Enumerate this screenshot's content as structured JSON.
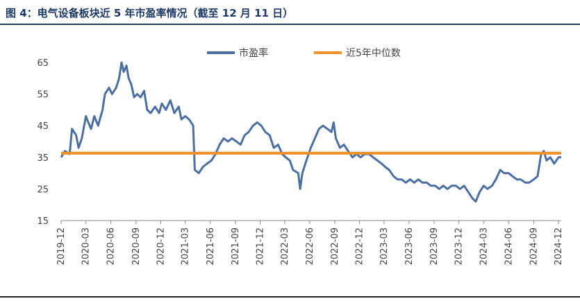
{
  "title": "图 4：电气设备板块近 5 年市盈率情况（截至 12 月 11 日）",
  "chart_data": {
    "type": "line",
    "title": "",
    "xlabel": "",
    "ylabel": "",
    "ylim": [
      15,
      65
    ],
    "yticks": [
      15,
      25,
      35,
      45,
      55,
      65
    ],
    "xticks": [
      "2019-12",
      "2020-03",
      "2020-06",
      "2020-09",
      "2020-12",
      "2021-03",
      "2021-06",
      "2021-09",
      "2021-12",
      "2022-03",
      "2022-06",
      "2022-09",
      "2022-12",
      "2023-03",
      "2023-06",
      "2023-09",
      "2023-12",
      "2024-03",
      "2024-06",
      "2024-09",
      "2024-12"
    ],
    "legend_position": "top-center",
    "series": [
      {
        "name": "市盈率",
        "color": "#4a6fa0",
        "points": [
          [
            "2019-12-01",
            35
          ],
          [
            "2019-12-15",
            37
          ],
          [
            "2020-01-01",
            36
          ],
          [
            "2020-01-10",
            44
          ],
          [
            "2020-01-25",
            42
          ],
          [
            "2020-02-03",
            38
          ],
          [
            "2020-02-15",
            41
          ],
          [
            "2020-03-01",
            48
          ],
          [
            "2020-03-10",
            46
          ],
          [
            "2020-03-20",
            44
          ],
          [
            "2020-04-01",
            48
          ],
          [
            "2020-04-15",
            45
          ],
          [
            "2020-05-01",
            50
          ],
          [
            "2020-05-10",
            55
          ],
          [
            "2020-05-25",
            57
          ],
          [
            "2020-06-05",
            55
          ],
          [
            "2020-06-20",
            57
          ],
          [
            "2020-07-01",
            60
          ],
          [
            "2020-07-10",
            65
          ],
          [
            "2020-07-18",
            62
          ],
          [
            "2020-07-28",
            64
          ],
          [
            "2020-08-05",
            60
          ],
          [
            "2020-08-15",
            58
          ],
          [
            "2020-08-25",
            54
          ],
          [
            "2020-09-05",
            55
          ],
          [
            "2020-09-18",
            54
          ],
          [
            "2020-10-01",
            56
          ],
          [
            "2020-10-12",
            50
          ],
          [
            "2020-10-25",
            49
          ],
          [
            "2020-11-10",
            51
          ],
          [
            "2020-11-25",
            49
          ],
          [
            "2020-12-05",
            52
          ],
          [
            "2020-12-20",
            50
          ],
          [
            "2021-01-05",
            53
          ],
          [
            "2021-01-20",
            49
          ],
          [
            "2021-02-05",
            51
          ],
          [
            "2021-02-15",
            47
          ],
          [
            "2021-03-01",
            48
          ],
          [
            "2021-03-15",
            47
          ],
          [
            "2021-03-30",
            45
          ],
          [
            "2021-04-05",
            31
          ],
          [
            "2021-04-20",
            30
          ],
          [
            "2021-05-05",
            32
          ],
          [
            "2021-05-20",
            33
          ],
          [
            "2021-06-05",
            34
          ],
          [
            "2021-06-20",
            36
          ],
          [
            "2021-07-05",
            39
          ],
          [
            "2021-07-20",
            41
          ],
          [
            "2021-08-05",
            40
          ],
          [
            "2021-08-20",
            41
          ],
          [
            "2021-09-05",
            40
          ],
          [
            "2021-09-20",
            39
          ],
          [
            "2021-10-05",
            42
          ],
          [
            "2021-10-20",
            43
          ],
          [
            "2021-11-05",
            45
          ],
          [
            "2021-11-20",
            46
          ],
          [
            "2021-12-05",
            45
          ],
          [
            "2021-12-20",
            43
          ],
          [
            "2022-01-05",
            42
          ],
          [
            "2022-01-20",
            38
          ],
          [
            "2022-02-05",
            39
          ],
          [
            "2022-02-20",
            36
          ],
          [
            "2022-03-05",
            35
          ],
          [
            "2022-03-20",
            34
          ],
          [
            "2022-04-01",
            31
          ],
          [
            "2022-04-20",
            30
          ],
          [
            "2022-04-27",
            25
          ],
          [
            "2022-05-05",
            30
          ],
          [
            "2022-05-20",
            34
          ],
          [
            "2022-06-05",
            38
          ],
          [
            "2022-06-20",
            41
          ],
          [
            "2022-07-05",
            44
          ],
          [
            "2022-07-20",
            45
          ],
          [
            "2022-08-05",
            44
          ],
          [
            "2022-08-20",
            43
          ],
          [
            "2022-08-28",
            46
          ],
          [
            "2022-09-05",
            41
          ],
          [
            "2022-09-20",
            38
          ],
          [
            "2022-10-05",
            39
          ],
          [
            "2022-10-20",
            37
          ],
          [
            "2022-11-05",
            35
          ],
          [
            "2022-11-20",
            36
          ],
          [
            "2022-12-05",
            35
          ],
          [
            "2022-12-20",
            36
          ],
          [
            "2023-01-05",
            36
          ],
          [
            "2023-01-20",
            35
          ],
          [
            "2023-02-05",
            34
          ],
          [
            "2023-02-20",
            33
          ],
          [
            "2023-03-05",
            32
          ],
          [
            "2023-03-20",
            31
          ],
          [
            "2023-04-05",
            29
          ],
          [
            "2023-04-20",
            28
          ],
          [
            "2023-05-05",
            28
          ],
          [
            "2023-05-20",
            27
          ],
          [
            "2023-06-05",
            28
          ],
          [
            "2023-06-20",
            27
          ],
          [
            "2023-07-05",
            28
          ],
          [
            "2023-07-20",
            27
          ],
          [
            "2023-08-05",
            27
          ],
          [
            "2023-08-20",
            26
          ],
          [
            "2023-09-05",
            26
          ],
          [
            "2023-09-20",
            25
          ],
          [
            "2023-10-05",
            26
          ],
          [
            "2023-10-20",
            25
          ],
          [
            "2023-11-05",
            26
          ],
          [
            "2023-11-20",
            26
          ],
          [
            "2023-12-05",
            25
          ],
          [
            "2023-12-20",
            26
          ],
          [
            "2024-01-05",
            24
          ],
          [
            "2024-01-20",
            22
          ],
          [
            "2024-02-01",
            21
          ],
          [
            "2024-02-15",
            24
          ],
          [
            "2024-03-01",
            26
          ],
          [
            "2024-03-15",
            25
          ],
          [
            "2024-04-01",
            26
          ],
          [
            "2024-04-15",
            28
          ],
          [
            "2024-05-01",
            31
          ],
          [
            "2024-05-15",
            30
          ],
          [
            "2024-06-01",
            30
          ],
          [
            "2024-06-15",
            29
          ],
          [
            "2024-07-01",
            28
          ],
          [
            "2024-07-15",
            28
          ],
          [
            "2024-08-01",
            27
          ],
          [
            "2024-08-15",
            27
          ],
          [
            "2024-09-01",
            28
          ],
          [
            "2024-09-15",
            29
          ],
          [
            "2024-09-28",
            36
          ],
          [
            "2024-10-08",
            37
          ],
          [
            "2024-10-18",
            34
          ],
          [
            "2024-11-01",
            35
          ],
          [
            "2024-11-15",
            33
          ],
          [
            "2024-12-01",
            35
          ],
          [
            "2024-12-11",
            35
          ]
        ]
      },
      {
        "name": "近5年中位数",
        "color": "#f0902a",
        "points": [
          [
            "2019-12-01",
            36.3
          ],
          [
            "2024-12-11",
            36.3
          ]
        ]
      }
    ]
  }
}
